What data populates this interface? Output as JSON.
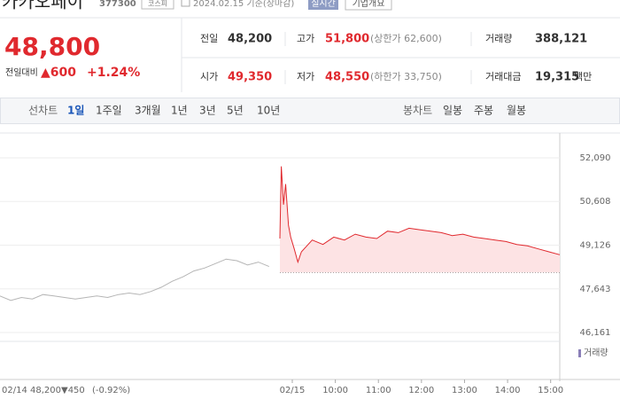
{
  "header": {
    "name": "카카오페이",
    "code": "377300",
    "market": "코스피",
    "date": "2024.02.15 기준(장마감)",
    "realtime": "실시간",
    "company": "기업개요"
  },
  "price": {
    "current": "48,800",
    "change_label": "전일대비",
    "change": "▲600",
    "rate": "+1.24%"
  },
  "stats": [
    {
      "label": "전일",
      "value": "48,200"
    },
    {
      "label": "고가",
      "value": "51,800",
      "sub": "(상한가 62,600)"
    },
    {
      "label": "거래량",
      "value": "388,121"
    },
    {
      "label": "시가",
      "value": "49,350"
    },
    {
      "label": "저가",
      "value": "48,550",
      "sub": "(하한가 33,750)"
    },
    {
      "label": "거래대금",
      "value": "19,315",
      "unit": "백만"
    }
  ],
  "tabs": {
    "line_label": "선차트",
    "line": [
      "1일",
      "1주일",
      "3개월",
      "1년",
      "3년",
      "5년",
      "10년"
    ],
    "candle_label": "봉차트",
    "candle": [
      "일봉",
      "주봉",
      "월봉"
    ]
  },
  "chart_data": {
    "type": "line",
    "xlim": [
      -390,
      390
    ],
    "ylim": [
      46161,
      52090
    ],
    "yticks": [
      {
        "value": 52090,
        "label": "52,090"
      },
      {
        "value": 50608,
        "label": "50,608"
      },
      {
        "value": 49126,
        "label": "49,126"
      },
      {
        "value": 47643,
        "label": "47,643"
      },
      {
        "value": 46161,
        "label": "46,161"
      }
    ],
    "xticks": [
      {
        "value": 0,
        "label": "02/15"
      },
      {
        "value": 60,
        "label": "10:00"
      },
      {
        "value": 120,
        "label": "11:00"
      },
      {
        "value": 180,
        "label": "12:00"
      },
      {
        "value": 240,
        "label": "13:00"
      },
      {
        "value": 300,
        "label": "14:00"
      },
      {
        "value": 360,
        "label": "15:00"
      }
    ],
    "grid": true,
    "reference": 48200,
    "series": [
      {
        "color": "#b5b5b5",
        "x": [
          -390,
          -375,
          -360,
          -345,
          -330,
          -315,
          -300,
          -285,
          -270,
          -255,
          -240,
          -225,
          -210,
          -195,
          -180,
          -165,
          -150,
          -135,
          -120,
          -105,
          -90,
          -75,
          -60,
          -45,
          -30,
          -15
        ],
        "values": [
          47400,
          47250,
          47350,
          47300,
          47450,
          47400,
          47350,
          47300,
          47350,
          47400,
          47350,
          47450,
          47500,
          47450,
          47550,
          47700,
          47900,
          48050,
          48250,
          48350,
          48500,
          48650,
          48600,
          48450,
          48550,
          48400
        ]
      },
      {
        "color": "#e0292e",
        "fill": "#fde3e4",
        "x": [
          0,
          2,
          5,
          8,
          12,
          15,
          20,
          25,
          30,
          45,
          60,
          75,
          90,
          105,
          120,
          135,
          150,
          165,
          180,
          195,
          210,
          225,
          240,
          255,
          270,
          285,
          300,
          315,
          330,
          345,
          360,
          375,
          390
        ],
        "values": [
          49350,
          51800,
          50500,
          51200,
          49800,
          49400,
          49000,
          48550,
          48900,
          49300,
          49150,
          49400,
          49300,
          49500,
          49400,
          49350,
          49600,
          49550,
          49700,
          49650,
          49600,
          49550,
          49450,
          49500,
          49400,
          49350,
          49300,
          49250,
          49150,
          49100,
          49000,
          48900,
          48800
        ]
      }
    ],
    "volume_label": "거래량",
    "footer": {
      "date": "02/14",
      "price": "48,200",
      "change": "▼450",
      "rate": "(-0.92%)"
    }
  }
}
